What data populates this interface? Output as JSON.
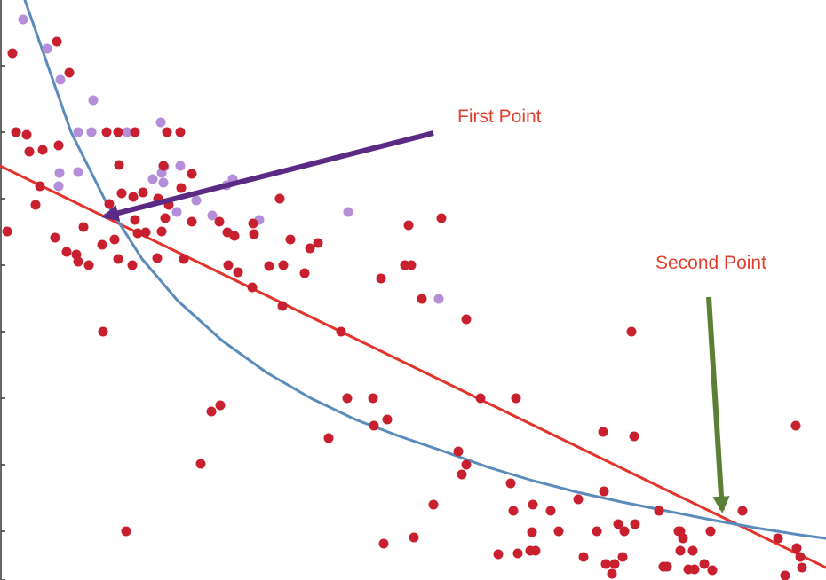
{
  "colors": {
    "red_points": "#c8202f",
    "purple_points": "#b48ed8",
    "linear_fit": "#e2342a",
    "curve_fit": "#5b8bba",
    "axis": "#333333",
    "first_arrow": "#5a2a84",
    "second_arrow": "#5b7f35",
    "label_text": "#e2402f"
  },
  "chart_data": {
    "type": "scatter",
    "title": "",
    "xlabel": "",
    "ylabel": "",
    "xlim": [
      0,
      930
    ],
    "ylim": [
      0,
      654
    ],
    "grid": false,
    "series": [
      {
        "color": "#c8202f",
        "points": [
          [
            14,
            594
          ],
          [
            64,
            607
          ],
          [
            78,
            572
          ],
          [
            18,
            505
          ],
          [
            30,
            502
          ],
          [
            48,
            485
          ],
          [
            66,
            490
          ],
          [
            33,
            483
          ],
          [
            8,
            393
          ],
          [
            45,
            444
          ],
          [
            40,
            423
          ],
          [
            62,
            386
          ],
          [
            75,
            370
          ],
          [
            86,
            367
          ],
          [
            100,
            355
          ],
          [
            88,
            359
          ],
          [
            94,
            398
          ],
          [
            115,
            378
          ],
          [
            123,
            424
          ],
          [
            129,
            384
          ],
          [
            133,
            362
          ],
          [
            137,
            436
          ],
          [
            150,
            432
          ],
          [
            161,
            437
          ],
          [
            149,
            355
          ],
          [
            177,
            363
          ],
          [
            184,
            467
          ],
          [
            188,
            505
          ],
          [
            203,
            505
          ],
          [
            216,
            458
          ],
          [
            204,
            442
          ],
          [
            178,
            430
          ],
          [
            190,
            423
          ],
          [
            186,
            408
          ],
          [
            182,
            393
          ],
          [
            164,
            392
          ],
          [
            155,
            391
          ],
          [
            152,
            406
          ],
          [
            134,
            468
          ],
          [
            120,
            505
          ],
          [
            133,
            505
          ],
          [
            152,
            505
          ],
          [
            216,
            404
          ],
          [
            207,
            362
          ],
          [
            247,
            404
          ],
          [
            256,
            392
          ],
          [
            264,
            388
          ],
          [
            285,
            402
          ],
          [
            286,
            390
          ],
          [
            257,
            355
          ],
          [
            268,
            347
          ],
          [
            303,
            354
          ],
          [
            319,
            355
          ],
          [
            343,
            346
          ],
          [
            315,
            430
          ],
          [
            327,
            384
          ],
          [
            349,
            374
          ],
          [
            358,
            380
          ],
          [
            284,
            330
          ],
          [
            318,
            309
          ],
          [
            384,
            280
          ],
          [
            116,
            280
          ],
          [
            429,
            340
          ],
          [
            456,
            355
          ],
          [
            463,
            355
          ],
          [
            460,
            400
          ],
          [
            497,
            408
          ],
          [
            475,
            317
          ],
          [
            525,
            294
          ],
          [
            541,
            205
          ],
          [
            581,
            205
          ],
          [
            420,
            205
          ],
          [
            391,
            205
          ],
          [
            436,
            181
          ],
          [
            421,
            174
          ],
          [
            370,
            160
          ],
          [
            238,
            190
          ],
          [
            248,
            197
          ],
          [
            226,
            131
          ],
          [
            142,
            55
          ],
          [
            432,
            41
          ],
          [
            466,
            48
          ],
          [
            488,
            85
          ],
          [
            520,
            119
          ],
          [
            516,
            145
          ],
          [
            525,
            130
          ],
          [
            575,
            109
          ],
          [
            578,
            78
          ],
          [
            600,
            85
          ],
          [
            599,
            54
          ],
          [
            620,
            78
          ],
          [
            629,
            55
          ],
          [
            651,
            91
          ],
          [
            672,
            55
          ],
          [
            696,
            63
          ],
          [
            703,
            55
          ],
          [
            715,
            63
          ],
          [
            742,
            78
          ],
          [
            766,
            55
          ],
          [
            769,
            47
          ],
          [
            800,
            55
          ],
          [
            836,
            78
          ],
          [
            876,
            47
          ],
          [
            711,
            280
          ],
          [
            679,
            167
          ],
          [
            714,
            162
          ],
          [
            896,
            174
          ],
          [
            897,
            36
          ],
          [
            680,
            100
          ],
          [
            583,
            30
          ],
          [
            597,
            33
          ],
          [
            603,
            33
          ],
          [
            561,
            29
          ],
          [
            657,
            26
          ],
          [
            682,
            18
          ],
          [
            692,
            18
          ],
          [
            701,
            26
          ],
          [
            689,
            7
          ],
          [
            747,
            15
          ],
          [
            751,
            15
          ],
          [
            766,
            33
          ],
          [
            775,
            12
          ],
          [
            782,
            12
          ],
          [
            793,
            18
          ],
          [
            802,
            11
          ],
          [
            780,
            33
          ],
          [
            884,
            5
          ],
          [
            903,
            14
          ],
          [
            901,
            26
          ],
          [
            764,
            55
          ]
        ]
      },
      {
        "color": "#b48ed8",
        "points": [
          [
            26,
            632
          ],
          [
            53,
            599
          ],
          [
            68,
            564
          ],
          [
            105,
            541
          ],
          [
            67,
            459
          ],
          [
            88,
            505
          ],
          [
            103,
            505
          ],
          [
            143,
            505
          ],
          [
            181,
            516
          ],
          [
            185,
            466
          ],
          [
            203,
            467
          ],
          [
            182,
            459
          ],
          [
            172,
            452
          ],
          [
            184,
            448
          ],
          [
            221,
            428
          ],
          [
            66,
            444
          ],
          [
            88,
            460
          ],
          [
            199,
            415
          ],
          [
            239,
            411
          ],
          [
            255,
            445
          ],
          [
            262,
            452
          ],
          [
            292,
            406
          ],
          [
            392,
            415
          ],
          [
            494,
            317
          ]
        ]
      }
    ],
    "fits": [
      {
        "kind": "linear",
        "color": "#e2342a",
        "points": [
          [
            0,
            467
          ],
          [
            930,
            14
          ]
        ]
      },
      {
        "kind": "curve",
        "color": "#5b8bba",
        "points": [
          [
            28,
            654
          ],
          [
            80,
            505
          ],
          [
            120,
            425
          ],
          [
            160,
            362
          ],
          [
            200,
            315
          ],
          [
            250,
            270
          ],
          [
            300,
            234
          ],
          [
            350,
            205
          ],
          [
            400,
            181
          ],
          [
            450,
            162
          ],
          [
            500,
            145
          ],
          [
            550,
            127
          ],
          [
            600,
            112
          ],
          [
            650,
            99
          ],
          [
            700,
            88
          ],
          [
            750,
            78
          ],
          [
            800,
            68
          ],
          [
            850,
            59
          ],
          [
            900,
            51
          ],
          [
            930,
            47
          ]
        ]
      }
    ],
    "annotations": [
      {
        "text": "First Point",
        "color": "#e2402f",
        "text_at": [
          515,
          516
        ],
        "arrow_from": [
          488,
          504
        ],
        "arrow_to": [
          118,
          410
        ],
        "arrow_color": "#5a2a84"
      },
      {
        "text": "Second Point",
        "color": "#e2402f",
        "text_at": [
          738,
          351
        ],
        "arrow_from": [
          798,
          319
        ],
        "arrow_to": [
          813,
          79
        ],
        "arrow_color": "#5b7f35"
      }
    ],
    "y_ticks": [
      0,
      55,
      130,
      205,
      280,
      355,
      430,
      505,
      580
    ]
  }
}
